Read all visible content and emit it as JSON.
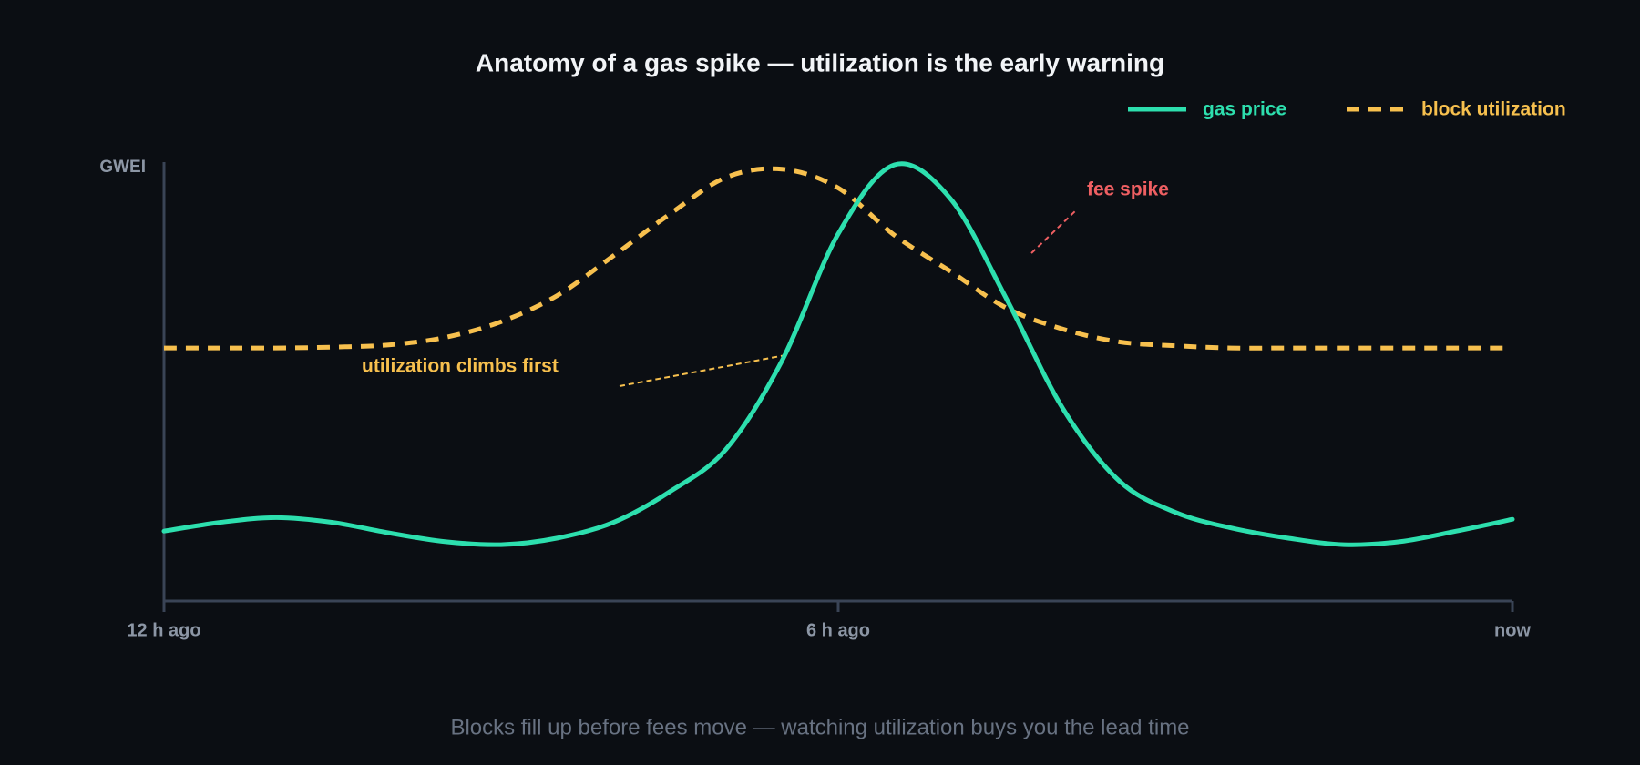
{
  "chart_data": {
    "type": "line",
    "title": "Anatomy of a gas spike — utilization is the early warning",
    "subtitle": "Blocks fill up before fees move — watching utilization buys you the lead time",
    "y_label": "GWEI",
    "x": [
      -12,
      -11.5,
      -11,
      -10.5,
      -10,
      -9.5,
      -9,
      -8.5,
      -8,
      -7.5,
      -7,
      -6.5,
      -6,
      -5.5,
      -5,
      -4.5,
      -4,
      -3.5,
      -3,
      -2.5,
      -2,
      -1.5,
      -1,
      -0.5,
      0
    ],
    "xlim": [
      -12,
      0
    ],
    "xticks": [
      {
        "value": -12,
        "label": "12 h ago"
      },
      {
        "value": -6,
        "label": "6 h ago"
      },
      {
        "value": 0,
        "label": "now"
      }
    ],
    "ylim": [
      0,
      100
    ],
    "grid": false,
    "legend": "top-right",
    "series": [
      {
        "name": "gas price",
        "color": "#2ddfae",
        "style": "solid",
        "values": [
          16,
          18,
          19.1,
          18,
          15.6,
          13.6,
          12.9,
          14.4,
          18,
          25,
          34.7,
          55,
          84,
          99.8,
          92,
          69,
          44,
          27.5,
          20.3,
          16.7,
          14.4,
          12.9,
          13.6,
          16,
          18.7
        ]
      },
      {
        "name": "block utilization",
        "color": "#f7c04e",
        "style": "dashed",
        "values": [
          57.9,
          57.9,
          57.9,
          58.1,
          58.6,
          60.3,
          63.9,
          69.9,
          79,
          88.5,
          96.9,
          98.8,
          94.5,
          83.7,
          75.4,
          67,
          62.2,
          59.3,
          58.4,
          57.9,
          57.9,
          57.9,
          57.9,
          57.9,
          57.9
        ]
      }
    ],
    "annotations": [
      {
        "text": "utilization climbs first",
        "color": "#f7c04e"
      },
      {
        "text": "fee spike",
        "color": "#ee5f62"
      }
    ]
  }
}
